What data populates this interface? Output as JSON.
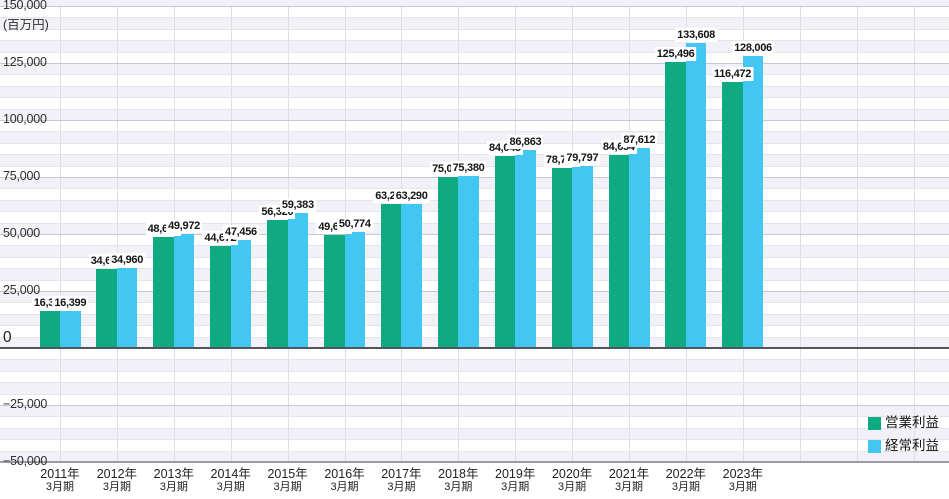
{
  "chart_data": {
    "type": "bar",
    "unit_label": "(百万円)",
    "y_axis": {
      "min": -50000,
      "max": 150000,
      "major_step": 25000,
      "minor_step": 5000,
      "tick_labels": [
        "150,000",
        "125,000",
        "100,000",
        "75,000",
        "50,000",
        "25,000",
        "0",
        "−25,000",
        "−50,000"
      ],
      "tick_values": [
        150000,
        125000,
        100000,
        75000,
        50000,
        25000,
        0,
        -25000,
        -50000
      ]
    },
    "categories": [
      {
        "year": "2011年",
        "term": "3月期"
      },
      {
        "year": "2012年",
        "term": "3月期"
      },
      {
        "year": "2013年",
        "term": "3月期"
      },
      {
        "year": "2014年",
        "term": "3月期"
      },
      {
        "year": "2015年",
        "term": "3月期"
      },
      {
        "year": "2016年",
        "term": "3月期"
      },
      {
        "year": "2017年",
        "term": "3月期"
      },
      {
        "year": "2018年",
        "term": "3月期"
      },
      {
        "year": "2019年",
        "term": "3月期"
      },
      {
        "year": "2020年",
        "term": "3月期"
      },
      {
        "year": "2021年",
        "term": "3月期"
      },
      {
        "year": "2022年",
        "term": "3月期"
      },
      {
        "year": "2023年",
        "term": "3月期"
      }
    ],
    "series": [
      {
        "name": "営業利益",
        "color": "#0fa982",
        "values": [
          16338,
          34606,
          48642,
          44672,
          56320,
          49641,
          63238,
          75024,
          84045,
          78775,
          84654,
          125496,
          116472
        ],
        "labels": [
          "16,338",
          "34,606",
          "48,642",
          "44,672",
          "56,320",
          "49,641",
          "63,238",
          "75,024",
          "84,045",
          "78,775",
          "84,654",
          "125,496",
          "116,472"
        ]
      },
      {
        "name": "経常利益",
        "color": "#41c7f2",
        "values": [
          16399,
          34960,
          49972,
          47456,
          59383,
          50774,
          63290,
          75380,
          86863,
          79797,
          87612,
          133608,
          128006
        ],
        "labels": [
          "16,399",
          "34,960",
          "49,972",
          "47,456",
          "59,383",
          "50,774",
          "63,290",
          "75,380",
          "86,863",
          "79,797",
          "87,612",
          "133,608",
          "128,006"
        ]
      }
    ],
    "legend": {
      "position": "bottom-right"
    },
    "grid": {
      "band_color": "#f1f1f7",
      "minor_line_color": "#e4e4ec",
      "major_line_color": "#c7c7d3",
      "vertical_line_color": "#dedee7",
      "zero_line_color": "#54545f",
      "bottom_line_color": "#9c9cab"
    }
  }
}
